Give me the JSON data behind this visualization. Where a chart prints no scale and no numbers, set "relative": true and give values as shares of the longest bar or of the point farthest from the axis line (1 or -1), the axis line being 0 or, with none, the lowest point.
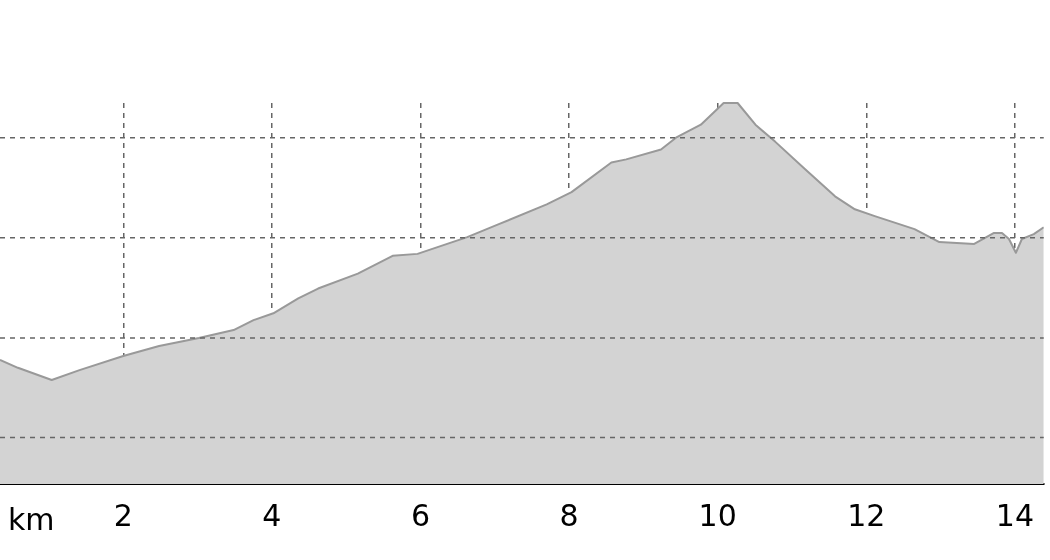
{
  "chart_data": {
    "type": "area",
    "relative": true,
    "xlabel": "km",
    "xlim": [
      0.341,
      14.388
    ],
    "xticks": [
      2,
      4,
      6,
      8,
      10,
      12,
      14
    ],
    "grid": "x",
    "legend": false,
    "marker": "none",
    "line_style": "solid",
    "ref_lines": [
      {
        "axis": "y",
        "value": 0.122,
        "color": "#666666",
        "line_style": "dashed"
      },
      {
        "axis": "y",
        "value": 0.383,
        "color": "#666666",
        "line_style": "dashed"
      },
      {
        "axis": "y",
        "value": 0.646,
        "color": "#666666",
        "line_style": "dashed"
      },
      {
        "axis": "y",
        "value": 0.909,
        "color": "#666666",
        "line_style": "dashed"
      }
    ],
    "series": [
      {
        "color": "#999999",
        "x": [
          0.341,
          0.582,
          1.037,
          1.411,
          2.0,
          2.482,
          3.017,
          3.485,
          3.753,
          4.02,
          4.355,
          4.622,
          5.157,
          5.625,
          5.96,
          6.629,
          7.03,
          7.699,
          8.033,
          8.569,
          8.769,
          9.237,
          9.438,
          9.773,
          10.08,
          10.268,
          10.508,
          10.776,
          11.177,
          11.579,
          11.846,
          12.114,
          12.649,
          12.983,
          13.452,
          13.719,
          13.826,
          13.92,
          14.013,
          14.094,
          14.254,
          14.388
        ],
        "values": [
          0.326,
          0.305,
          0.273,
          0.299,
          0.336,
          0.362,
          0.383,
          0.404,
          0.43,
          0.448,
          0.487,
          0.513,
          0.552,
          0.599,
          0.604,
          0.648,
          0.68,
          0.734,
          0.766,
          0.844,
          0.852,
          0.878,
          0.909,
          0.943,
          1,
          1,
          0.943,
          0.898,
          0.826,
          0.755,
          0.721,
          0.703,
          0.669,
          0.635,
          0.63,
          0.659,
          0.659,
          0.643,
          0.607,
          0.643,
          0.656,
          0.674
        ]
      }
    ]
  }
}
